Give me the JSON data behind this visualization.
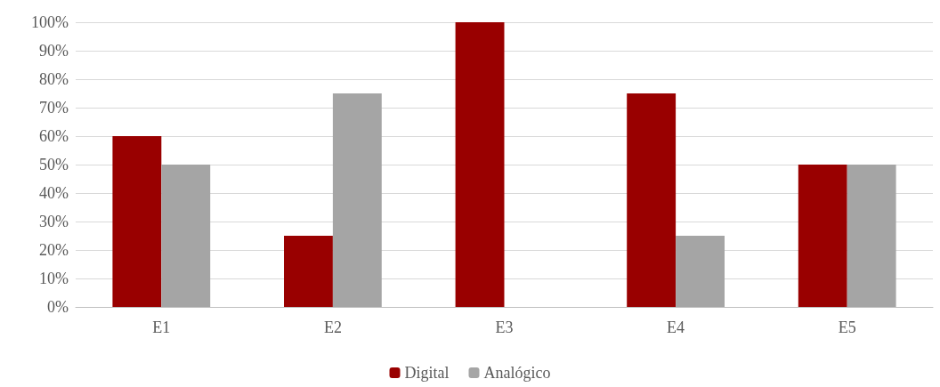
{
  "chart_data": {
    "type": "bar",
    "categories": [
      "E1",
      "E2",
      "E3",
      "E4",
      "E5"
    ],
    "series": [
      {
        "name": "Digital",
        "color": "#990000",
        "values": [
          60,
          25,
          100,
          75,
          50
        ]
      },
      {
        "name": "Analógico",
        "color": "#a5a5a5",
        "values": [
          50,
          75,
          0,
          25,
          50
        ]
      }
    ],
    "ylim": [
      0,
      100
    ],
    "yticks": [
      {
        "value": 0,
        "label": "0%"
      },
      {
        "value": 10,
        "label": "10%"
      },
      {
        "value": 20,
        "label": "20%"
      },
      {
        "value": 30,
        "label": "30%"
      },
      {
        "value": 40,
        "label": "40%"
      },
      {
        "value": 50,
        "label": "50%"
      },
      {
        "value": 60,
        "label": "60%"
      },
      {
        "value": 70,
        "label": "70%"
      },
      {
        "value": 80,
        "label": "80%"
      },
      {
        "value": 90,
        "label": "90%"
      },
      {
        "value": 100,
        "label": "100%"
      }
    ],
    "grid": "y",
    "legend": "bottom"
  }
}
